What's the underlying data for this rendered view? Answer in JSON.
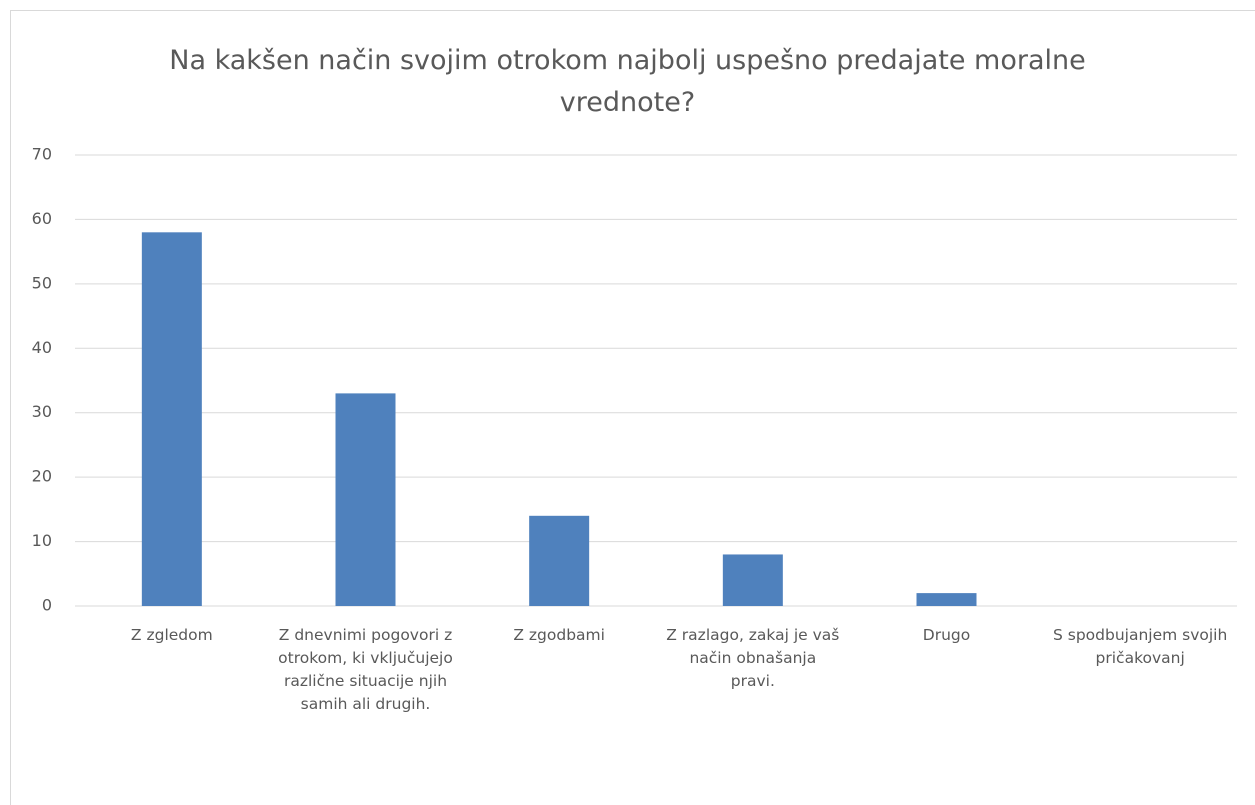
{
  "chart_data": {
    "type": "bar",
    "title": "Na kakšen način svojim otrokom najbolj uspešno predajate moralne vrednote?",
    "categories": [
      "Z zgledom",
      "Z dnevnimi pogovori z otrokom, ki vključujejo različne situacije njih samih ali drugih.",
      "Z zgodbami",
      "Z razlago, zakaj je vaš način obnašanja pravi.",
      "Drugo",
      "S spodbujanjem svojih pričakovanj"
    ],
    "values": [
      58,
      33,
      14,
      8,
      2,
      0
    ],
    "color": "#4f81bd",
    "ylim": [
      0,
      70
    ],
    "yticks": [
      0,
      10,
      20,
      30,
      40,
      50,
      60,
      70
    ],
    "grid": true
  }
}
